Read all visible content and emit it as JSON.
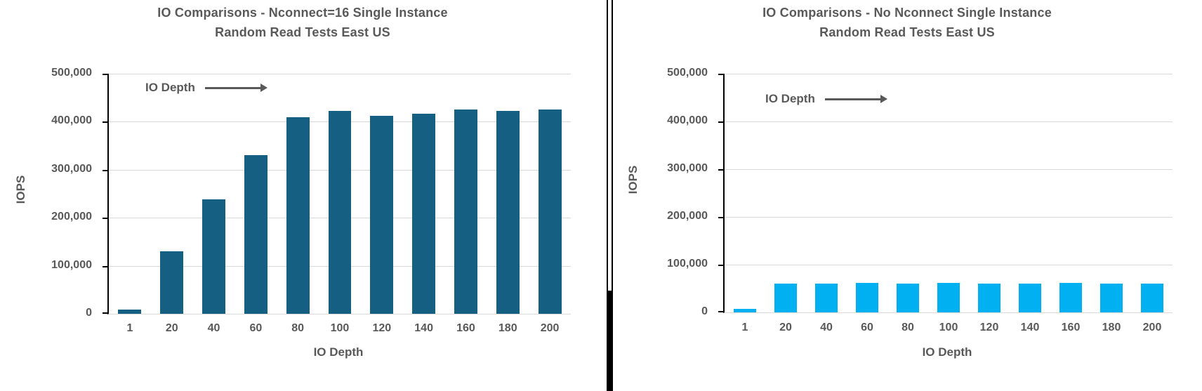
{
  "colors": {
    "text": "#595959",
    "gridline": "#d9d9d9",
    "axis_line": "#000000",
    "divider": "#000000",
    "background": "#ffffff"
  },
  "chart_data": [
    {
      "type": "bar",
      "title_line1": "IO Comparisons -  Nconnect=16 Single Instance",
      "title_line2": "Random Read Tests East US",
      "ylabel": "IOPS",
      "xlabel": "IO Depth",
      "annotation": "IO Depth",
      "annotation_icon": "right-arrow",
      "categories": [
        "1",
        "20",
        "40",
        "60",
        "80",
        "100",
        "120",
        "140",
        "160",
        "180",
        "200"
      ],
      "values": [
        9000,
        130000,
        238000,
        330000,
        409000,
        422000,
        413000,
        416000,
        425000,
        423000,
        425000
      ],
      "y_tick_labels": [
        "500,000",
        "400,000",
        "300,000",
        "200,000",
        "100,000",
        "0"
      ],
      "ylim": [
        0,
        500000
      ],
      "grid": true,
      "legend": "none",
      "bar_color": "#156082"
    },
    {
      "type": "bar",
      "title_line1": "IO Comparisons - No Nconnect Single Instance",
      "title_line2": "Random Read Tests East US",
      "ylabel": "IOPS",
      "xlabel": "IO Depth",
      "annotation": "IO Depth",
      "annotation_icon": "right-arrow",
      "categories": [
        "1",
        "20",
        "40",
        "60",
        "80",
        "100",
        "120",
        "140",
        "160",
        "180",
        "200"
      ],
      "values": [
        7000,
        61000,
        61000,
        62000,
        61000,
        62000,
        61000,
        61000,
        62000,
        61000,
        61000
      ],
      "y_tick_labels": [
        "500,000",
        "400,000",
        "300,000",
        "200,000",
        "100,000",
        "0"
      ],
      "ylim": [
        0,
        500000
      ],
      "grid": true,
      "legend": "none",
      "bar_color": "#00b0f0"
    }
  ]
}
